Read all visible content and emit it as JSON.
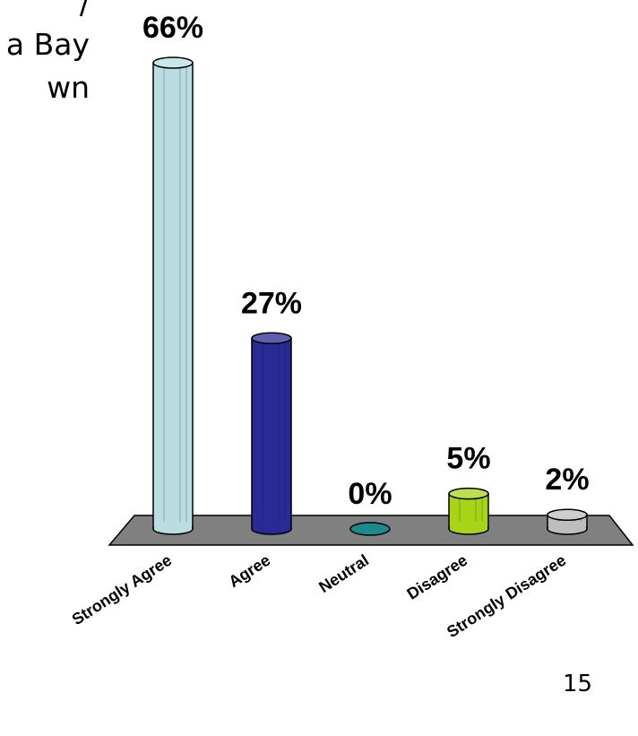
{
  "slide": {
    "text_fragments": [
      "/",
      "a Bay",
      "wn"
    ],
    "page_number": "15"
  },
  "chart_data": {
    "type": "bar",
    "title": "",
    "xlabel": "",
    "ylabel": "",
    "categories": [
      "Strongly Agree",
      "Agree",
      "Neutral",
      "Disagree",
      "Strongly Disagree"
    ],
    "values": [
      66,
      27,
      0,
      5,
      2
    ],
    "value_labels": [
      "66%",
      "27%",
      "0%",
      "5%",
      "2%"
    ],
    "unit": "%",
    "colors": [
      "#b9dde0",
      "#2a2a96",
      "#1a8a8a",
      "#a8d418",
      "#bdbdbd"
    ],
    "grid": false,
    "legend": "none",
    "style": "3d-cylinder"
  }
}
